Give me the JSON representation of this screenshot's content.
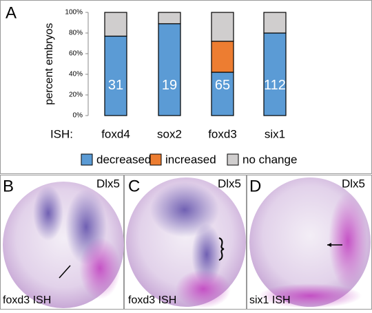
{
  "panel_label": "A",
  "chart_data": {
    "type": "stacked_bar",
    "y_label": "percent embryos",
    "x_label": "ISH:",
    "categories": [
      "foxd4",
      "sox2",
      "foxd3",
      "six1"
    ],
    "series": [
      {
        "name": "decreased",
        "color": "#5b9bd5",
        "values": [
          77,
          89,
          42,
          80
        ]
      },
      {
        "name": "increased",
        "color": "#ed7d31",
        "values": [
          0,
          0,
          30,
          0
        ]
      },
      {
        "name": "no change",
        "color": "#d0cece",
        "values": [
          23,
          11,
          28,
          20
        ]
      }
    ],
    "bar_labels": [
      31,
      19,
      65,
      112
    ],
    "ylim": [
      0,
      100
    ],
    "yticks": [
      {
        "value": 0,
        "label": "0%"
      },
      {
        "value": 20,
        "label": "20%"
      },
      {
        "value": 40,
        "label": "40%"
      },
      {
        "value": 60,
        "label": "60%"
      },
      {
        "value": 80,
        "label": "80%"
      },
      {
        "value": 100,
        "label": "100%"
      }
    ],
    "legend": "bottom"
  },
  "panels": [
    {
      "label": "B",
      "marker": "Dlx5",
      "caption": "foxd3 ISH"
    },
    {
      "label": "C",
      "marker": "Dlx5",
      "caption": "foxd3 ISH"
    },
    {
      "label": "D",
      "marker": "Dlx5",
      "caption": "six1 ISH"
    }
  ]
}
